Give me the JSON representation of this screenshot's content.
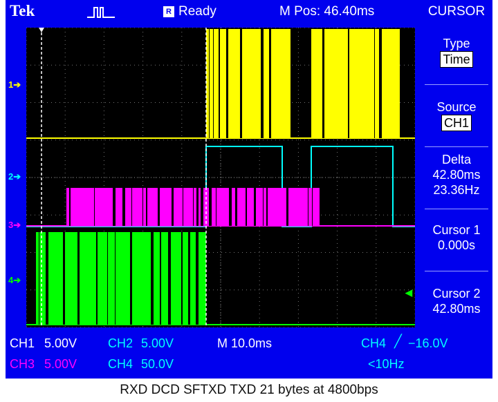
{
  "topbar": {
    "brand": "Tek",
    "trigger_icon": "trigger-waveform-icon",
    "run_box": "R",
    "status": "Ready",
    "m_pos": "M Pos: 46.40ms"
  },
  "side_menu": {
    "title": "CURSOR",
    "type_label": "Type",
    "type_value": "Time",
    "source_label": "Source",
    "source_value": "CH1",
    "delta_label": "Delta",
    "delta_time": "42.80ms",
    "delta_freq": "23.36Hz",
    "cursor1_label": "Cursor 1",
    "cursor1_value": "0.000s",
    "cursor2_label": "Cursor 2",
    "cursor2_value": "42.80ms"
  },
  "markers": {
    "ch1": "1",
    "ch2": "2",
    "ch3": "3",
    "ch4": "4"
  },
  "status_bar": {
    "ch1_label": "CH1",
    "ch1_value": "5.00V",
    "ch2_label": "CH2",
    "ch2_value": "5.00V",
    "ch3_label": "CH3",
    "ch3_value": "5.00V",
    "ch4_label": "CH4",
    "ch4_value": "50.0V",
    "timebase": "M 10.0ms",
    "trigger_source": "CH4",
    "trigger_level": "−16.0V",
    "trigger_freq": "<10Hz"
  },
  "colors": {
    "screen": "#0000ee",
    "ch1": "#ffff00",
    "ch2": "#00ffff",
    "ch3": "#ff00ff",
    "ch4": "#00ff00"
  },
  "caption": "RXD DCD SFTXD TXD  21 bytes at 4800bps"
}
